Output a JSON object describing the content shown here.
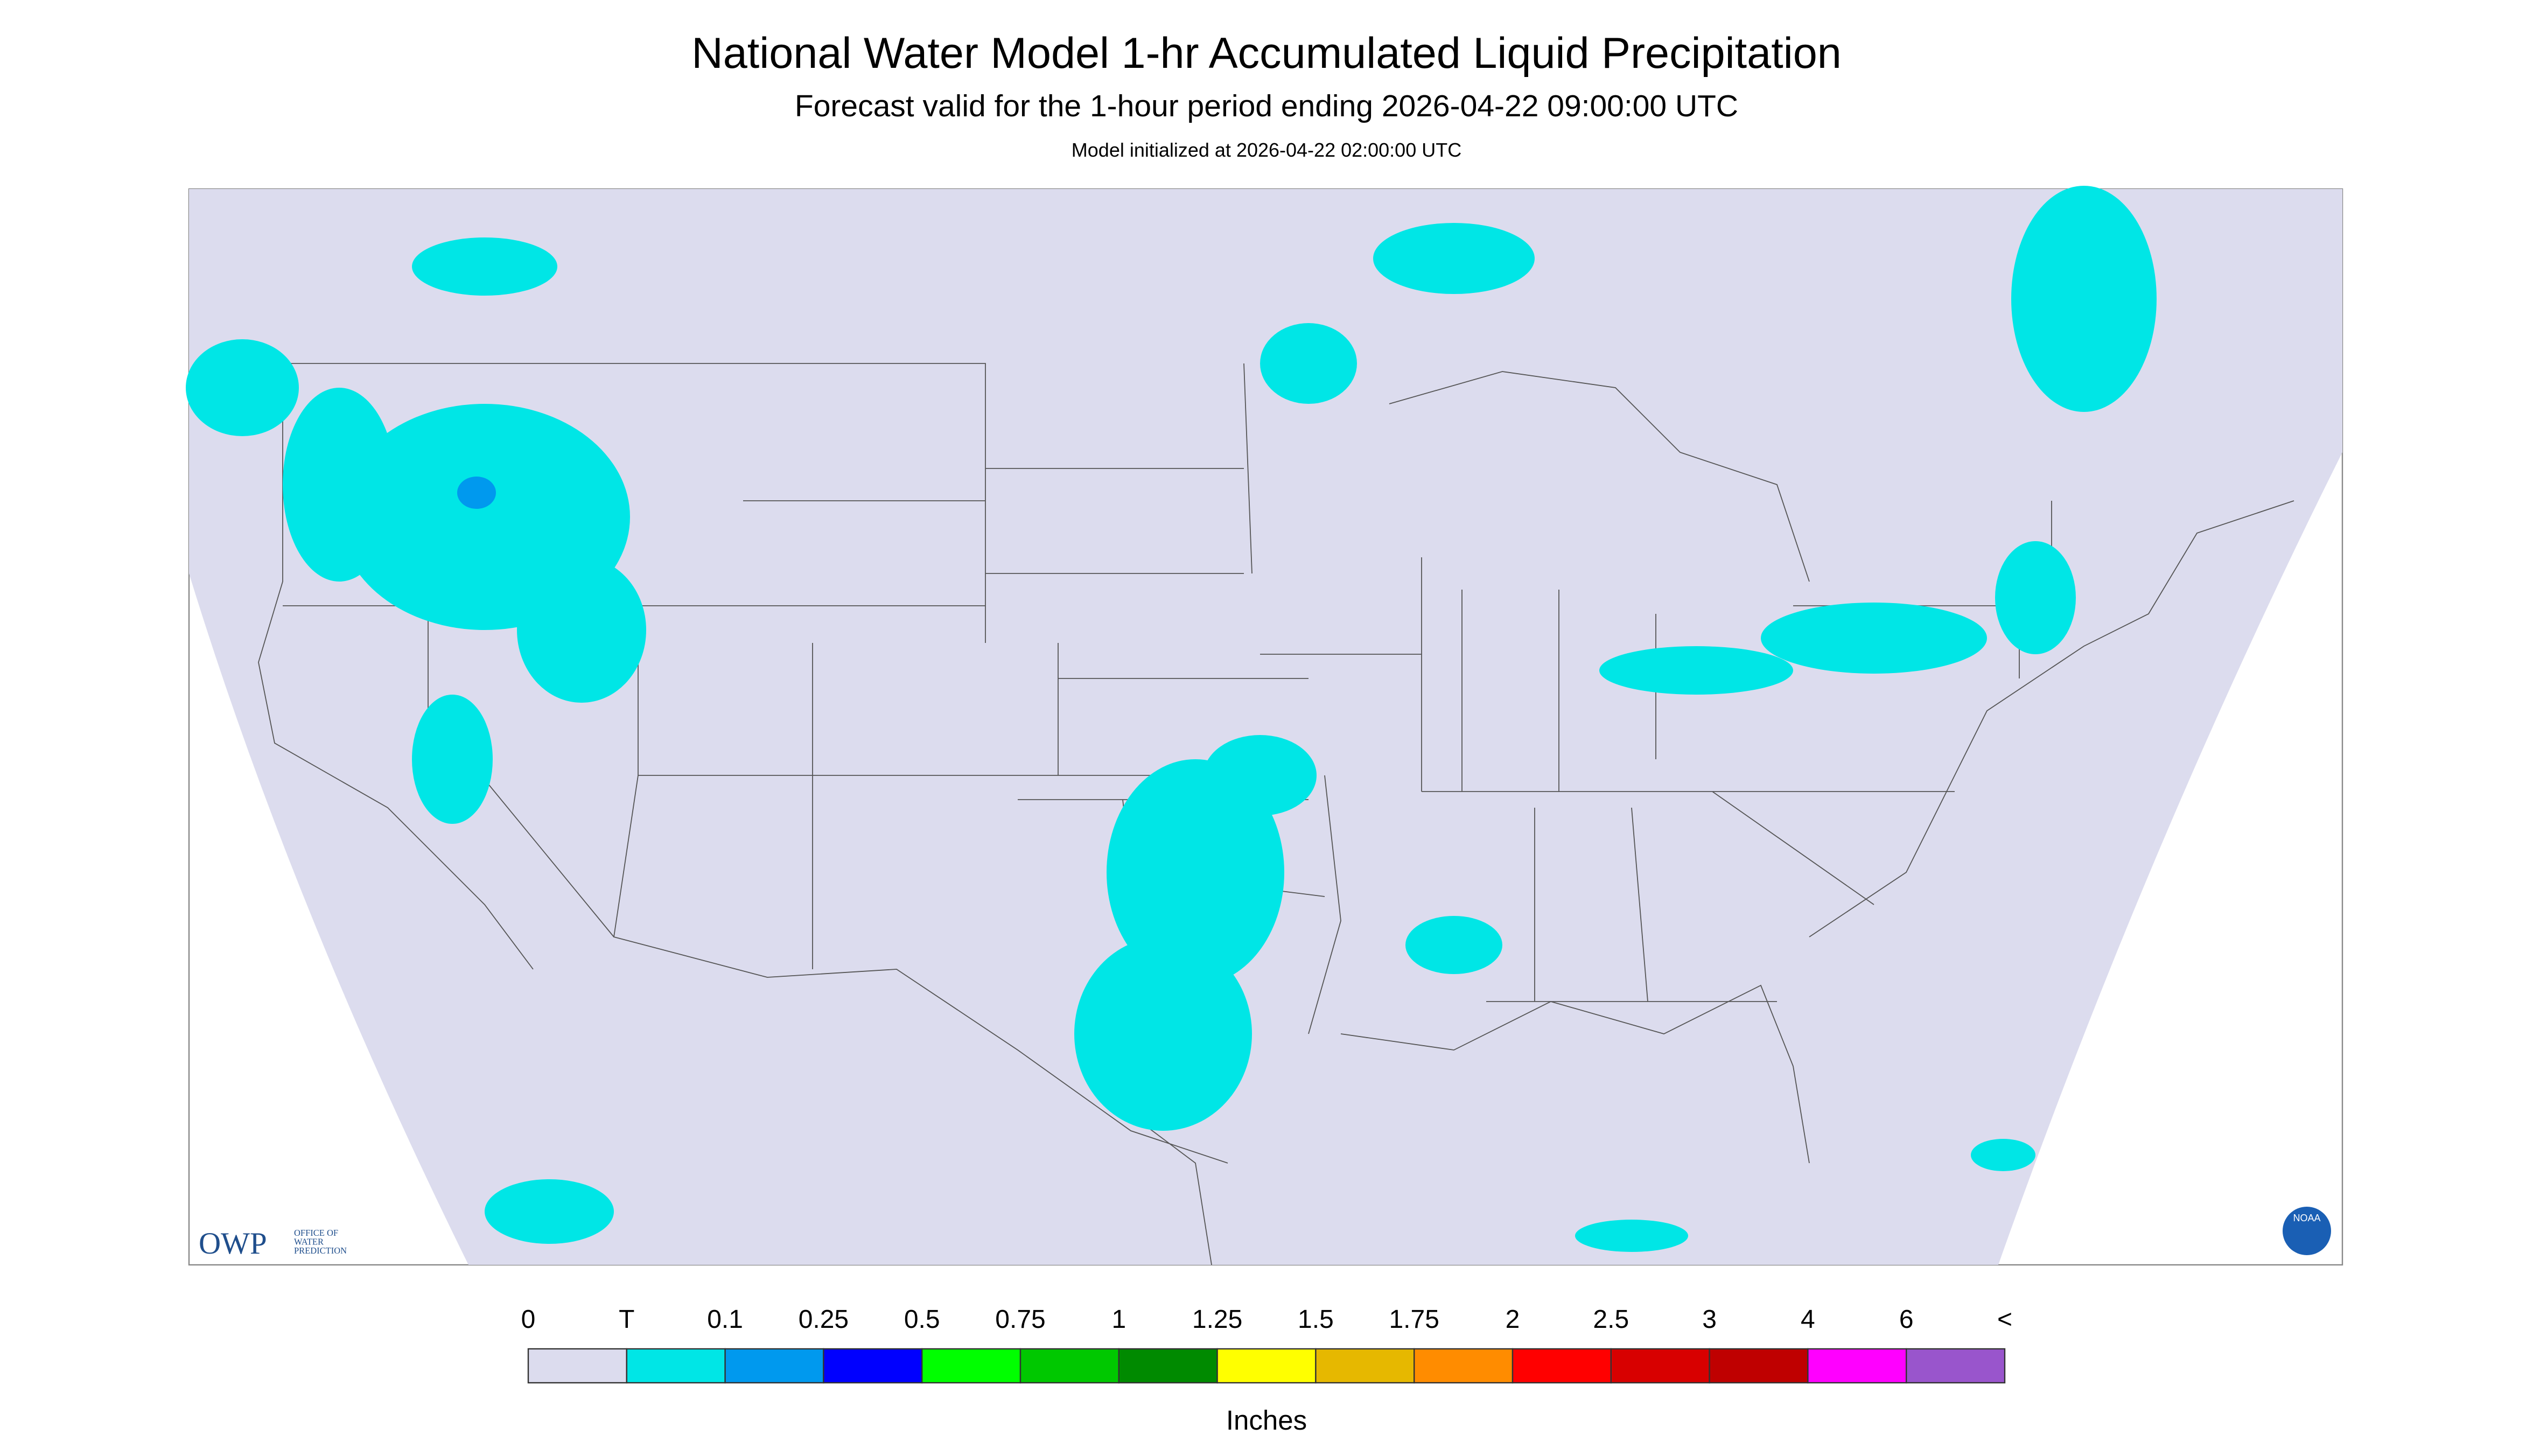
{
  "header": {
    "title": "National Water Model 1-hr Accumulated Liquid Precipitation",
    "subtitle": "Forecast valid for the 1-hour period ending 2026-04-22 09:00:00 UTC",
    "initialized": "Model initialized at 2026-04-22 02:00:00 UTC"
  },
  "logos": {
    "owp": "OWP",
    "owp_name": [
      "OFFICE OF",
      "WATER",
      "PREDICTION"
    ],
    "noaa": "NOAA"
  },
  "legend": {
    "labels": [
      "0",
      "T",
      "0.1",
      "0.25",
      "0.5",
      "0.75",
      "1",
      "1.25",
      "1.5",
      "1.75",
      "2",
      "2.5",
      "3",
      "4",
      "6",
      "<"
    ],
    "colors": [
      "#dcdcee",
      "#00e6e6",
      "#0099ee",
      "#0000ff",
      "#00ff00",
      "#00c800",
      "#008a00",
      "#ffff00",
      "#e6b800",
      "#ff8c00",
      "#ff0000",
      "#d80000",
      "#bf0000",
      "#ff00ff",
      "#9955cc"
    ],
    "unit": "Inches"
  }
}
